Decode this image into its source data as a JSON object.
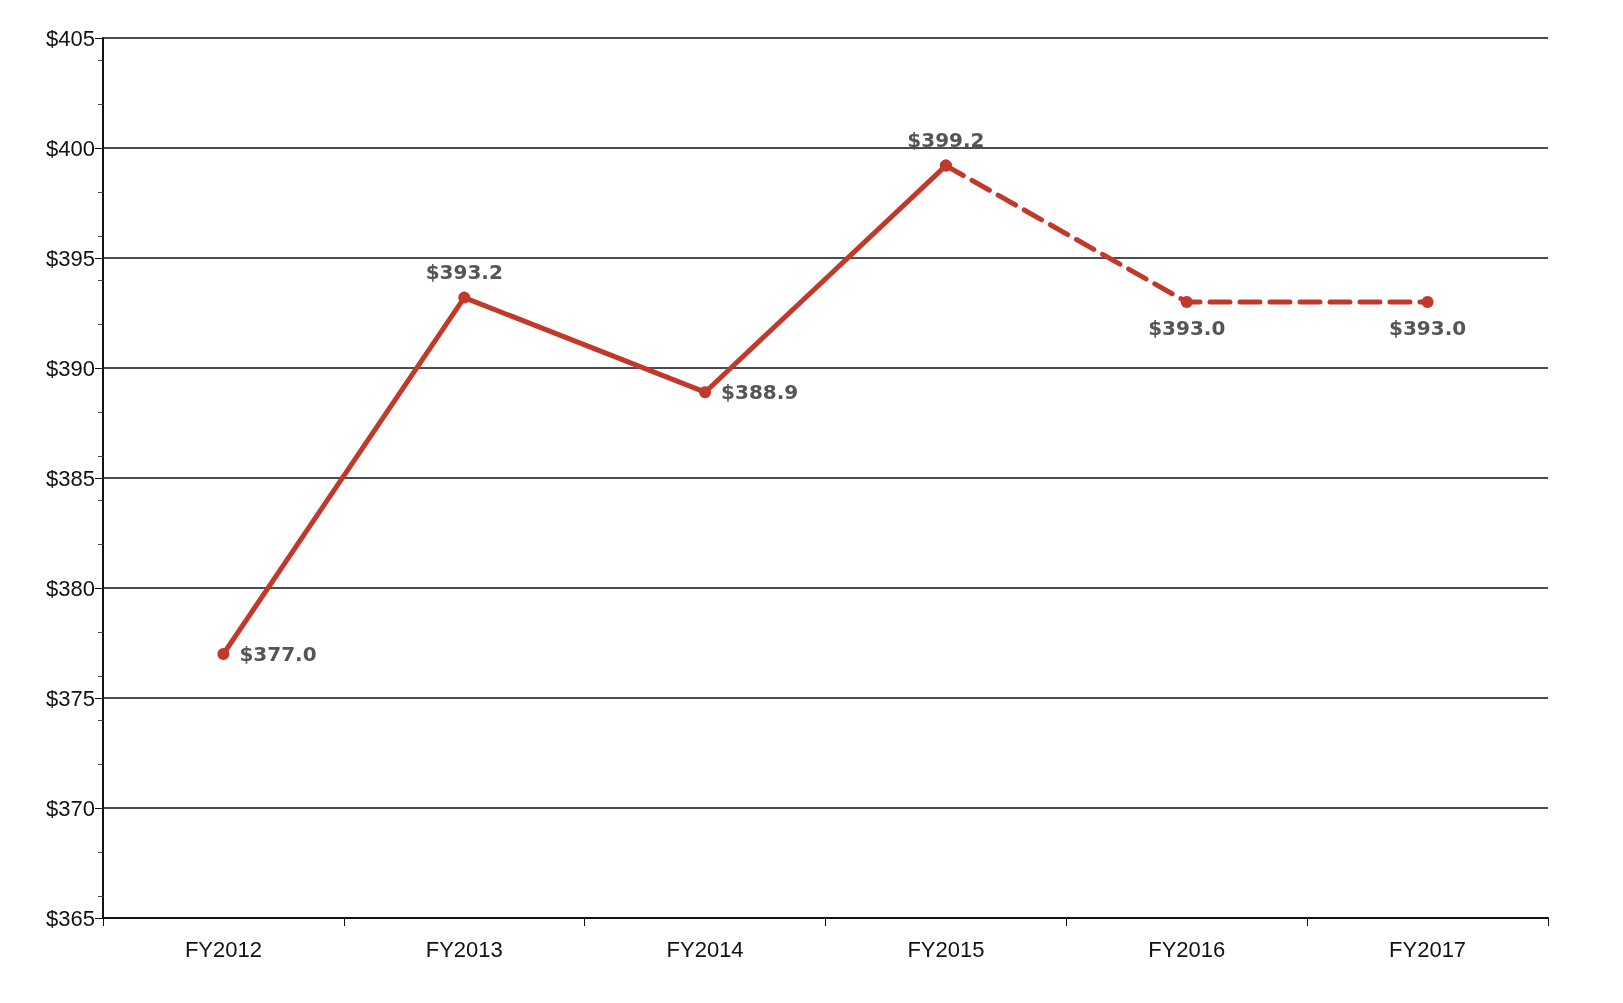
{
  "chart_data": {
    "type": "line",
    "categories": [
      "FY2012",
      "FY2013",
      "FY2014",
      "FY2015",
      "FY2016",
      "FY2017"
    ],
    "series": [
      {
        "color": "#c0392b",
        "line_style": "solid",
        "values": [
          377.0,
          393.2,
          388.9,
          399.2,
          null,
          null
        ],
        "value_labels": [
          "$377.0",
          "$393.2",
          "$388.9",
          "$399.2",
          null,
          null
        ]
      },
      {
        "color": "#c0392b",
        "line_style": "dashed",
        "values": [
          null,
          null,
          null,
          399.2,
          393.0,
          393.0
        ],
        "value_labels": [
          null,
          null,
          null,
          null,
          "$393.0",
          "$393.0"
        ]
      }
    ],
    "ylim": [
      365,
      405
    ],
    "yticks": [
      {
        "value": 365,
        "label": "$365"
      },
      {
        "value": 370,
        "label": "$370"
      },
      {
        "value": 375,
        "label": "$375"
      },
      {
        "value": 380,
        "label": "$380"
      },
      {
        "value": 385,
        "label": "$385"
      },
      {
        "value": 390,
        "label": "$390"
      },
      {
        "value": 395,
        "label": "$395"
      },
      {
        "value": 400,
        "label": "$400"
      },
      {
        "value": 405,
        "label": "$405"
      }
    ],
    "grid": "y",
    "marker": "circle"
  }
}
